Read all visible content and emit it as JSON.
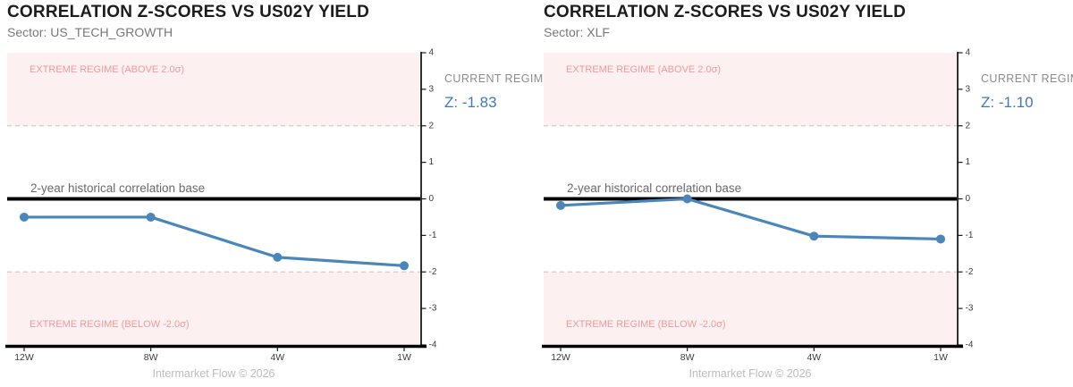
{
  "colors": {
    "series_line": "#4a86ba",
    "z_value_text": "#3d7ab8",
    "extreme_band_fill": "#fcf0f0",
    "extreme_band_label": "#f09a9a",
    "threshold_dash": "#d6c9c9",
    "zero_line": "#000000",
    "axis": "#1a1a1a",
    "tick_label": "#3b3b3b",
    "zero_line_label": "#696969"
  },
  "chart_data": [
    {
      "type": "line",
      "title": "CORRELATION Z-SCORES VS US02Y YIELD",
      "subtitle": "Sector: US_TECH_GROWTH",
      "categories": [
        "12W",
        "8W",
        "4W",
        "1W"
      ],
      "values": [
        -0.5,
        -0.5,
        -1.6,
        -1.83
      ],
      "ylim": [
        -4,
        4
      ],
      "yticks": [
        4,
        3,
        2,
        1,
        0,
        -1,
        -2,
        -3,
        -4
      ],
      "grid": false,
      "zero_line_label": "2-year historical correlation base",
      "upper_band": {
        "from": 2,
        "to": 4,
        "label": "EXTREME REGIME (ABOVE 2.0σ)"
      },
      "lower_band": {
        "from": -4,
        "to": -2,
        "label": "EXTREME REGIME (BELOW -2.0σ)"
      },
      "current_regime_label": "CURRENT REGIME",
      "z_label": "Z: -1.83",
      "footer": "Intermarket Flow © 2026"
    },
    {
      "type": "line",
      "title": "CORRELATION Z-SCORES VS US02Y YIELD",
      "subtitle": "Sector: XLF",
      "categories": [
        "12W",
        "8W",
        "4W",
        "1W"
      ],
      "values": [
        -0.18,
        0.0,
        -1.02,
        -1.1
      ],
      "ylim": [
        -4,
        4
      ],
      "yticks": [
        4,
        3,
        2,
        1,
        0,
        -1,
        -2,
        -3,
        -4
      ],
      "grid": false,
      "zero_line_label": "2-year historical correlation base",
      "upper_band": {
        "from": 2,
        "to": 4,
        "label": "EXTREME REGIME (ABOVE 2.0σ)"
      },
      "lower_band": {
        "from": -4,
        "to": -2,
        "label": "EXTREME REGIME (BELOW -2.0σ)"
      },
      "current_regime_label": "CURRENT REGIME",
      "z_label": "Z: -1.10",
      "footer": "Intermarket Flow © 2026"
    }
  ]
}
